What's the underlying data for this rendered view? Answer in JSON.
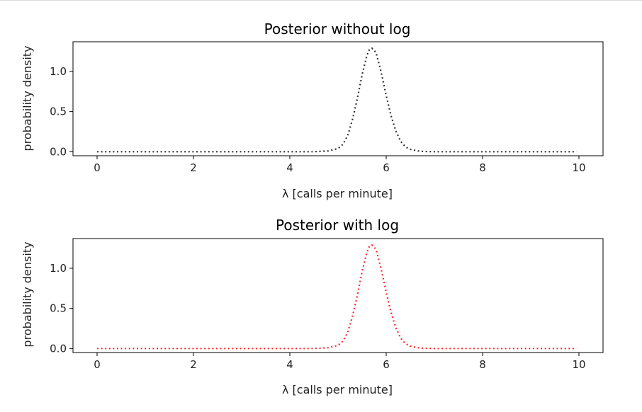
{
  "chart_data": [
    {
      "type": "line",
      "title": "Posterior without log",
      "xlabel": "λ [calls per minute]",
      "ylabel": "probability density",
      "xlim": [
        -0.5,
        10.5
      ],
      "ylim": [
        -0.05,
        1.37
      ],
      "xticks": [
        0,
        2,
        4,
        6,
        8,
        10
      ],
      "xtick_labels": [
        "0",
        "2",
        "4",
        "6",
        "8",
        "10"
      ],
      "yticks": [
        0.0,
        0.5,
        1.0
      ],
      "ytick_labels": [
        "0.0",
        "0.5",
        "1.0"
      ],
      "grid": false,
      "series": [
        {
          "color": "#333333",
          "linestyle": "dotted",
          "x": [
            0,
            0.5,
            1,
            1.5,
            2,
            2.5,
            3,
            3.5,
            4,
            4.5,
            4.8,
            5.0,
            5.1,
            5.2,
            5.3,
            5.4,
            5.5,
            5.6,
            5.65,
            5.7,
            5.75,
            5.8,
            5.9,
            6.0,
            6.1,
            6.2,
            6.3,
            6.4,
            6.5,
            6.7,
            7,
            7.5,
            8,
            8.5,
            9,
            9.5,
            9.95
          ],
          "y": [
            0,
            0,
            0,
            0,
            0,
            0,
            0,
            0,
            0,
            0.0,
            0.01,
            0.04,
            0.09,
            0.2,
            0.4,
            0.66,
            0.96,
            1.2,
            1.27,
            1.29,
            1.27,
            1.21,
            0.98,
            0.7,
            0.45,
            0.26,
            0.13,
            0.06,
            0.03,
            0.005,
            0,
            0,
            0,
            0,
            0,
            0,
            0
          ]
        }
      ]
    },
    {
      "type": "line",
      "title": "Posterior with log",
      "xlabel": "λ [calls per minute]",
      "ylabel": "probability density",
      "xlim": [
        -0.5,
        10.5
      ],
      "ylim": [
        -0.05,
        1.37
      ],
      "xticks": [
        0,
        2,
        4,
        6,
        8,
        10
      ],
      "xtick_labels": [
        "0",
        "2",
        "4",
        "6",
        "8",
        "10"
      ],
      "yticks": [
        0.0,
        0.5,
        1.0
      ],
      "ytick_labels": [
        "0.0",
        "0.5",
        "1.0"
      ],
      "grid": false,
      "series": [
        {
          "color": "#ff2a2a",
          "linestyle": "dotted",
          "x": [
            0,
            0.5,
            1,
            1.5,
            2,
            2.5,
            3,
            3.5,
            4,
            4.5,
            4.8,
            5.0,
            5.1,
            5.2,
            5.3,
            5.4,
            5.5,
            5.6,
            5.65,
            5.7,
            5.75,
            5.8,
            5.9,
            6.0,
            6.1,
            6.2,
            6.3,
            6.4,
            6.5,
            6.7,
            7,
            7.5,
            8,
            8.5,
            9,
            9.5,
            9.95
          ],
          "y": [
            0,
            0,
            0,
            0,
            0,
            0,
            0,
            0,
            0,
            0.0,
            0.01,
            0.04,
            0.09,
            0.2,
            0.4,
            0.66,
            0.96,
            1.2,
            1.27,
            1.29,
            1.27,
            1.21,
            0.98,
            0.7,
            0.45,
            0.26,
            0.13,
            0.06,
            0.03,
            0.005,
            0,
            0,
            0,
            0,
            0,
            0,
            0
          ]
        }
      ]
    }
  ]
}
